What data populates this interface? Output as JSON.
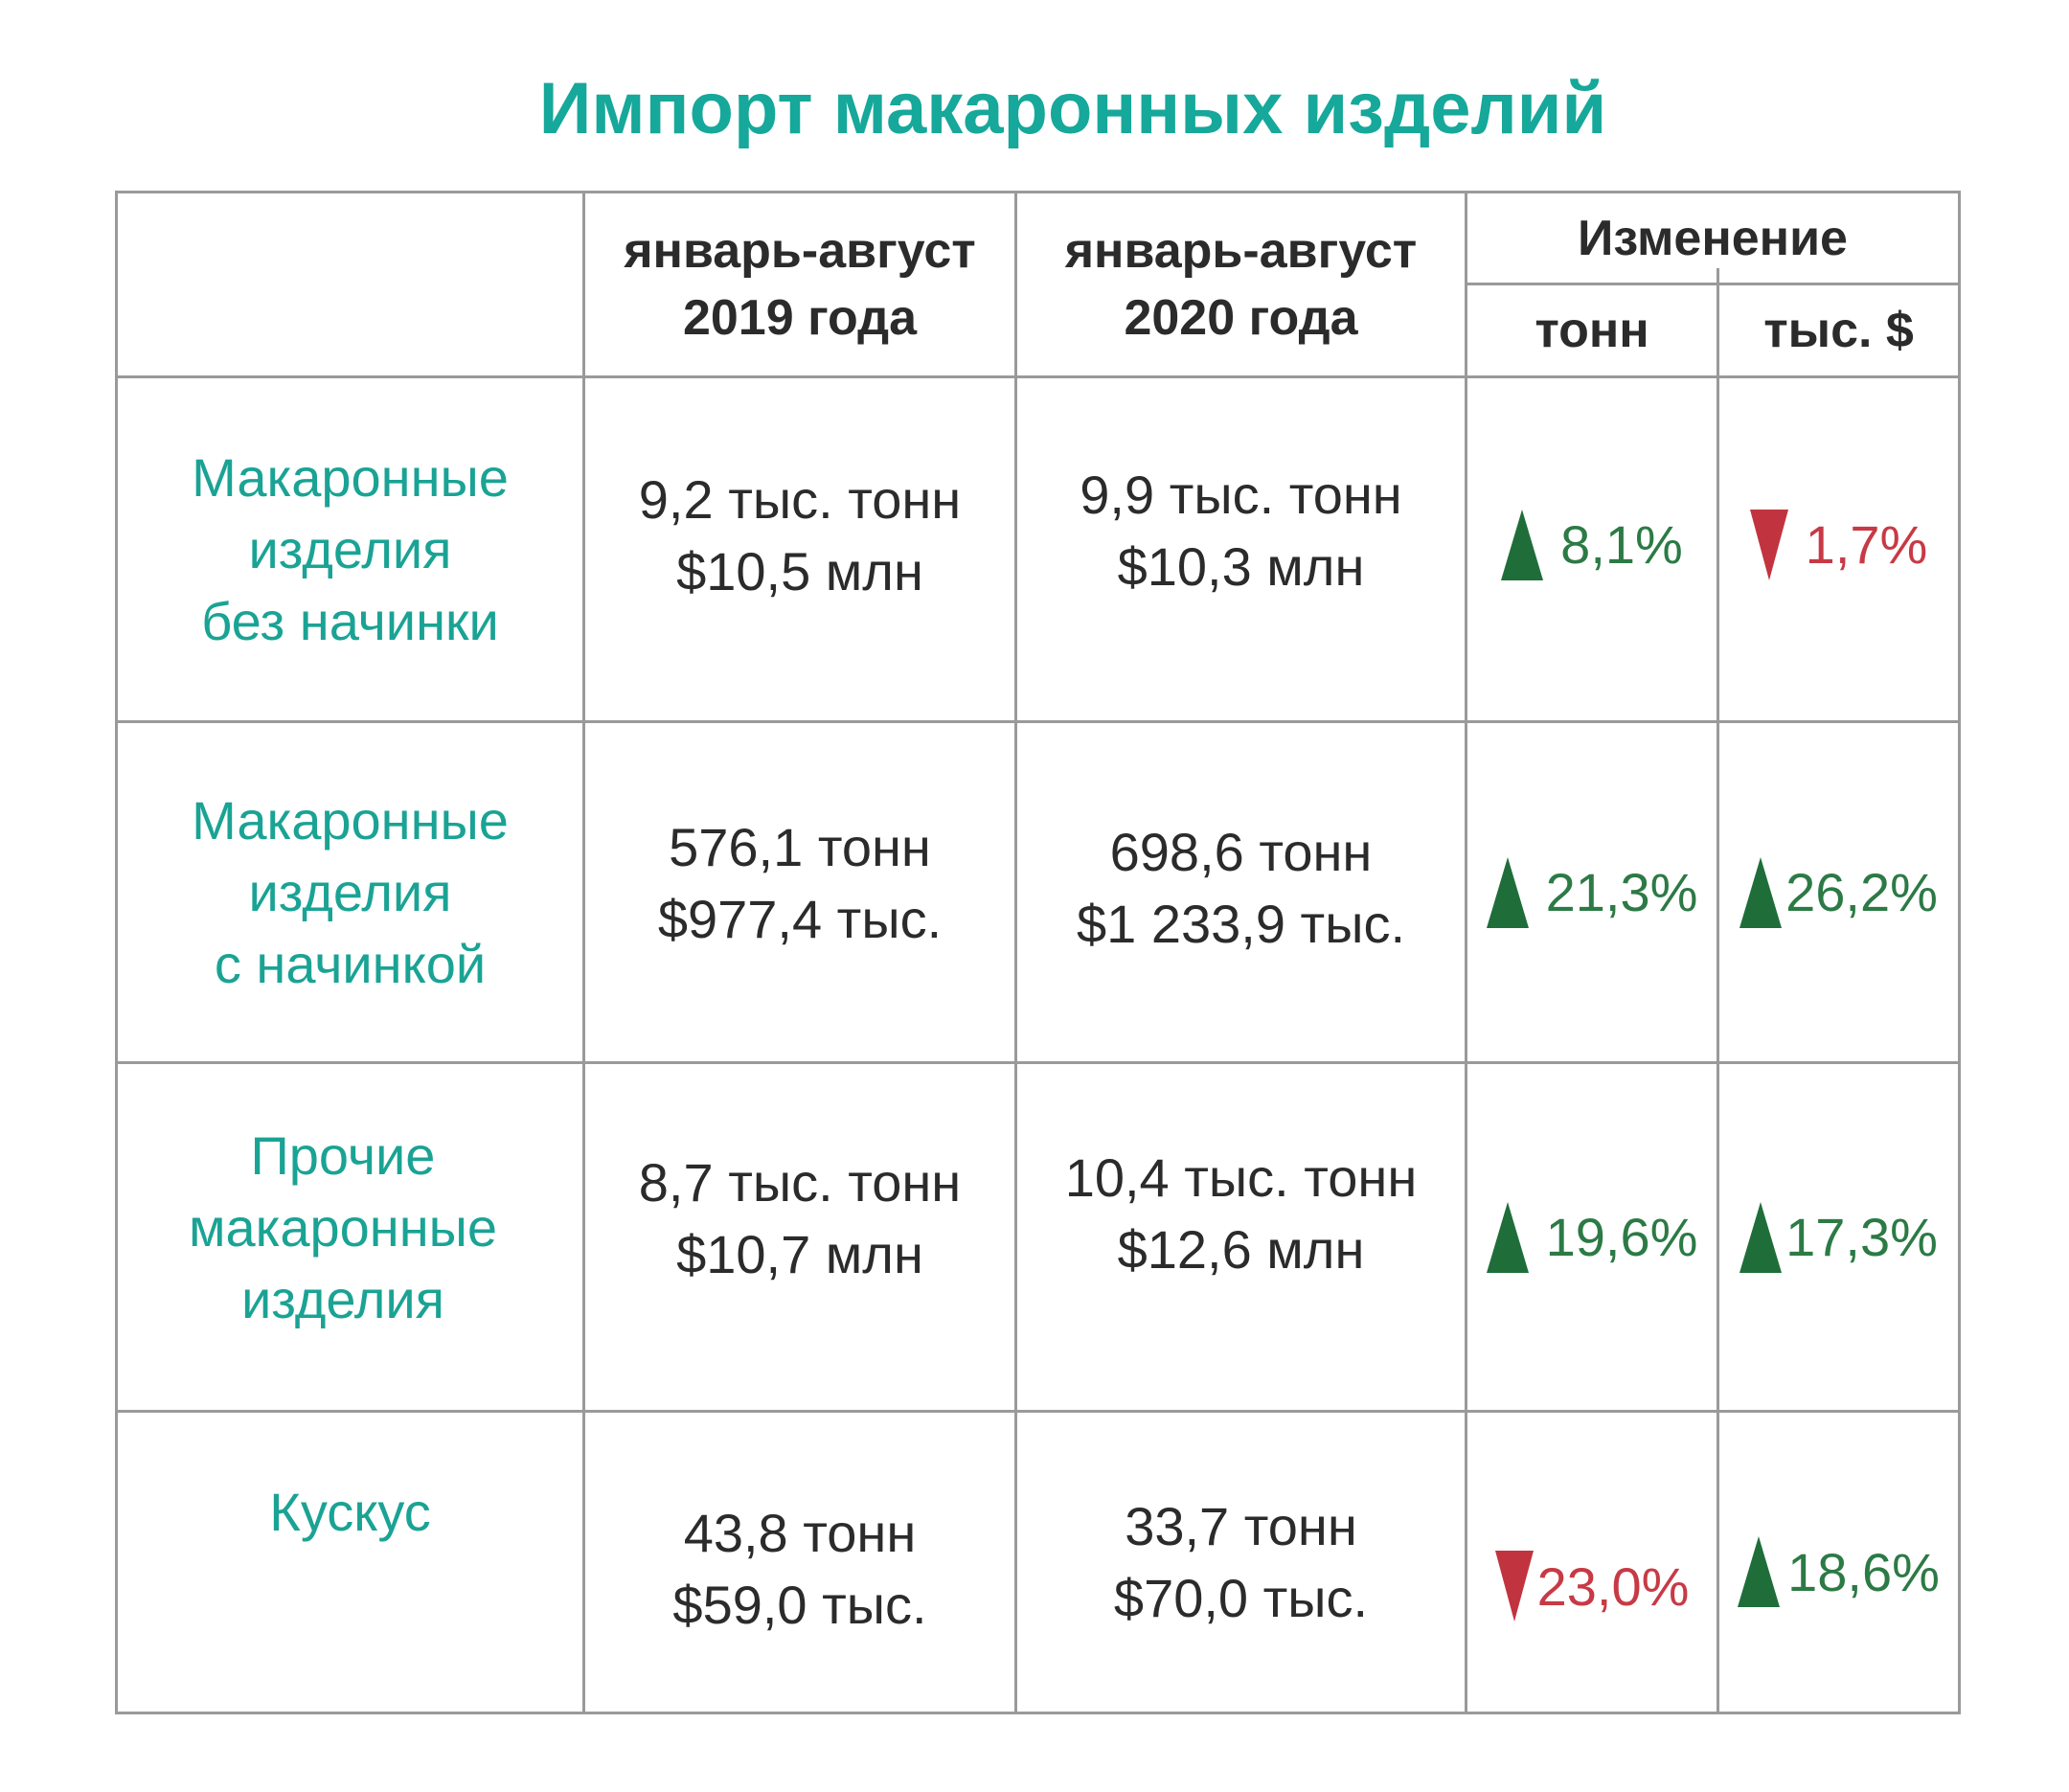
{
  "chart_data": {
    "type": "table",
    "title": "Импорт макаронных изделий",
    "columns": {
      "period_2019": [
        "январь-август",
        "2019 года"
      ],
      "period_2020": [
        "январь-август",
        "2020 года"
      ],
      "change": "Изменение",
      "change_tons": "тонн",
      "change_usd": "тыс. $"
    },
    "rows": [
      {
        "label": [
          "Макаронные",
          "изделия",
          "без начинки"
        ],
        "v2019": [
          "9,2 тыс. тонн",
          "$10,5 млн"
        ],
        "v2020": [
          "9,9 тыс. тонн",
          "$10,3 млн"
        ],
        "change_tons": {
          "text": "8,1%",
          "direction": "up"
        },
        "change_usd": {
          "text": "1,7%",
          "direction": "down"
        }
      },
      {
        "label": [
          "Макаронные",
          "изделия",
          "с начинкой"
        ],
        "v2019": [
          "576,1 тонн",
          "$977,4 тыс."
        ],
        "v2020": [
          "698,6 тонн",
          "$1 233,9 тыс."
        ],
        "change_tons": {
          "text": "21,3%",
          "direction": "up"
        },
        "change_usd": {
          "text": "26,2%",
          "direction": "up"
        }
      },
      {
        "label": [
          "Прочие",
          "макаронные",
          "изделия"
        ],
        "v2019": [
          "8,7 тыс. тонн",
          "$10,7 млн"
        ],
        "v2020": [
          "10,4 тыс. тонн",
          "$12,6 млн"
        ],
        "change_tons": {
          "text": "19,6%",
          "direction": "up"
        },
        "change_usd": {
          "text": "17,3%",
          "direction": "up"
        }
      },
      {
        "label": [
          "Кускус"
        ],
        "v2019": [
          "43,8 тонн",
          "$59,0 тыс."
        ],
        "v2020": [
          "33,7 тонн",
          "$70,0 тыс."
        ],
        "change_tons": {
          "text": "23,0%",
          "direction": "down"
        },
        "change_usd": {
          "text": "18,6%",
          "direction": "up"
        }
      }
    ],
    "colors": {
      "title": "#16a89a",
      "row_label": "#1aa394",
      "up": "#1f6e3a",
      "down": "#c1343f"
    }
  }
}
